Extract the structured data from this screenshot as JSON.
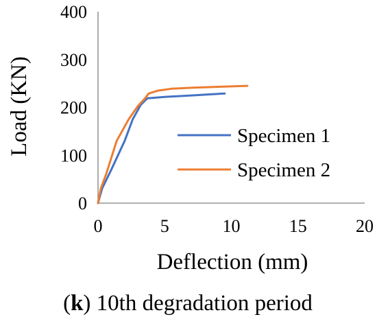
{
  "chart_data": {
    "type": "line",
    "xlabel": "Deflection (mm)",
    "ylabel": "Load (KN)",
    "xlim": [
      0,
      20
    ],
    "ylim": [
      0,
      400
    ],
    "xticks": [
      "0",
      "5",
      "10",
      "15",
      "20"
    ],
    "yticks": [
      "0",
      "100",
      "200",
      "300",
      "400"
    ],
    "grid": false,
    "legend_position": "center-right",
    "series": [
      {
        "name": "Specimen 1",
        "color": "#4472C4",
        "points": [
          [
            0,
            0
          ],
          [
            0.3,
            30
          ],
          [
            1,
            70
          ],
          [
            2,
            130
          ],
          [
            2.6,
            175
          ],
          [
            3.2,
            205
          ],
          [
            3.7,
            219
          ],
          [
            5,
            222
          ],
          [
            7,
            225
          ],
          [
            9.5,
            229
          ]
        ]
      },
      {
        "name": "Specimen 2",
        "color": "#ED7D31",
        "points": [
          [
            0,
            0
          ],
          [
            0.2,
            30
          ],
          [
            0.6,
            60
          ],
          [
            1.4,
            130
          ],
          [
            2.3,
            175
          ],
          [
            3,
            203
          ],
          [
            3.5,
            218
          ],
          [
            3.8,
            229
          ],
          [
            4.5,
            235
          ],
          [
            5.5,
            239
          ],
          [
            7,
            241
          ],
          [
            9,
            243
          ],
          [
            11.2,
            245
          ]
        ]
      }
    ]
  },
  "caption": {
    "label_open": "(",
    "label": "k",
    "label_close": ")",
    "text": " 10th degradation period"
  }
}
